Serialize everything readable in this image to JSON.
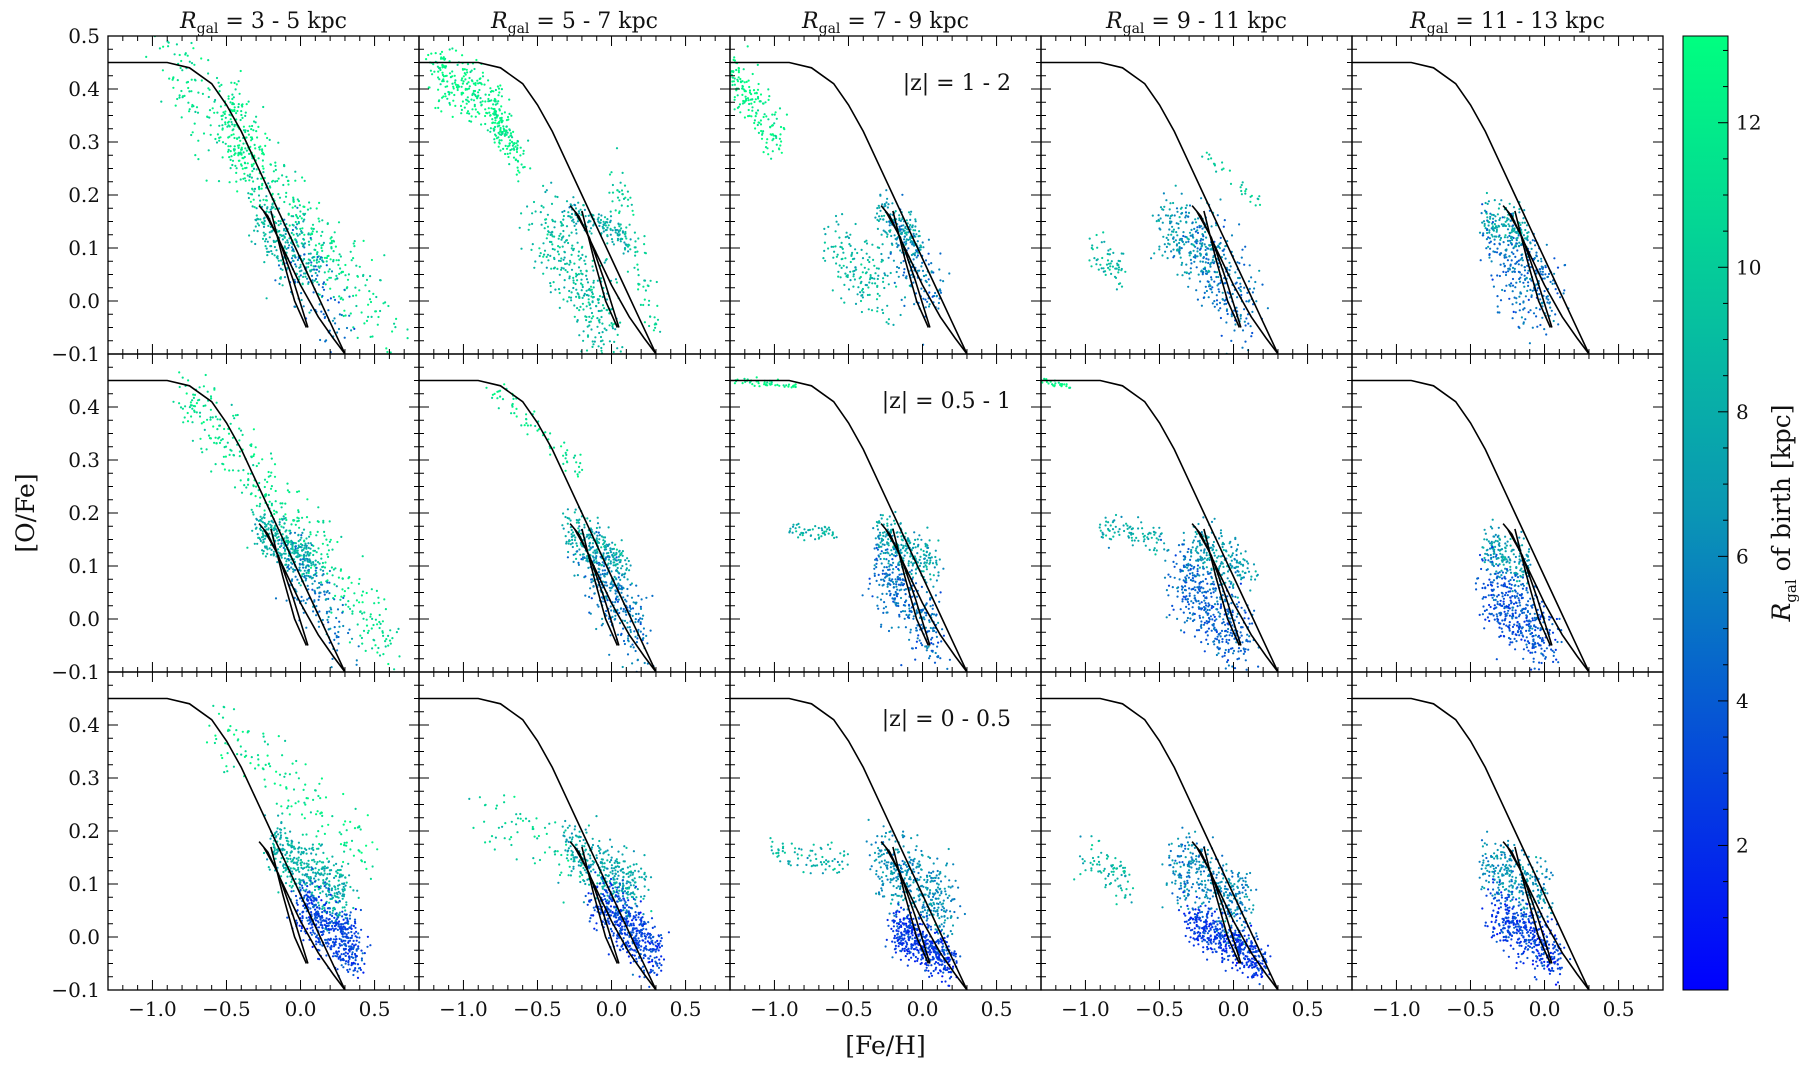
{
  "chart_data": {
    "type": "scatter",
    "xlabel": "[Fe/H]",
    "ylabel": "[O/Fe]",
    "xlim": [
      -1.3,
      0.8
    ],
    "ylim": [
      -0.1,
      0.5
    ],
    "x_ticks": [
      -1.0,
      -0.5,
      0.0,
      0.5
    ],
    "x_tick_labels": [
      "−1.0",
      "−0.5",
      "0.0",
      "0.5"
    ],
    "y_ticks": [
      -0.1,
      0.0,
      0.1,
      0.2,
      0.3,
      0.4,
      0.5
    ],
    "y_tick_labels_top": [
      "−0.1",
      "0.0",
      "0.1",
      "0.2",
      "0.3",
      "0.4",
      "0.5"
    ],
    "y_tick_labels": [
      "−0.1",
      "0.0",
      "0.1",
      "0.2",
      "0.3",
      "0.4"
    ],
    "columns": [
      "3 - 5 kpc",
      "5 - 7 kpc",
      "7 - 9 kpc",
      "9 - 11 kpc",
      "11 - 13 kpc"
    ],
    "column_prefix": "R",
    "column_prefix_sub": "gal",
    "rows": [
      "|z| = 1 - 2",
      "|z| = 0.5 - 1",
      "|z| = 0 - 0.5"
    ],
    "colorbar": {
      "label": "of birth [kpc]",
      "label_prefix": "R",
      "label_sub": "gal",
      "range": [
        0,
        13.2
      ],
      "ticks": [
        2,
        4,
        6,
        8,
        10,
        12
      ],
      "tick_labels": [
        "2",
        "4",
        "6",
        "8",
        "10",
        "12"
      ],
      "color_low": "#0000ff",
      "color_high": "#00ff80"
    },
    "reference_curves": {
      "high_alpha_track": {
        "x": [
          -1.3,
          -0.9,
          -0.75,
          -0.6,
          -0.5,
          -0.4,
          -0.3,
          -0.2,
          -0.1,
          0.0,
          0.1,
          0.2,
          0.3
        ],
        "y": [
          0.45,
          0.45,
          0.44,
          0.41,
          0.37,
          0.32,
          0.26,
          0.2,
          0.14,
          0.08,
          0.02,
          -0.04,
          -0.1
        ]
      },
      "low_alpha_loop": {
        "x": [
          0.05,
          -0.05,
          -0.15,
          -0.25,
          -0.28,
          -0.22,
          -0.12,
          0.0,
          0.12,
          0.22,
          0.3
        ],
        "y": [
          -0.05,
          0.04,
          0.12,
          0.17,
          0.18,
          0.16,
          0.1,
          0.03,
          -0.03,
          -0.07,
          -0.1
        ]
      },
      "low_alpha_inner": {
        "x": [
          -0.2,
          -0.12,
          -0.04,
          0.04
        ],
        "y": [
          0.17,
          0.08,
          0.0,
          -0.05
        ]
      }
    },
    "populations": [
      {
        "panel": [
          0,
          0
        ],
        "groups": [
          {
            "x0": -0.9,
            "y0": 0.45,
            "x1": 0.6,
            "y1": -0.05,
            "spread": 0.06,
            "r": 11.5,
            "n": 420
          },
          {
            "x0": -0.5,
            "y0": 0.38,
            "x1": -0.3,
            "y1": 0.25,
            "spread": 0.05,
            "r": 12.3,
            "n": 160
          },
          {
            "x0": -0.3,
            "y0": 0.17,
            "x1": 0.1,
            "y1": 0.05,
            "spread": 0.05,
            "r": 8.5,
            "n": 260
          },
          {
            "x0": -0.1,
            "y0": 0.1,
            "x1": 0.3,
            "y1": -0.05,
            "spread": 0.05,
            "r": 5.0,
            "n": 100
          }
        ]
      },
      {
        "panel": [
          0,
          1
        ],
        "groups": [
          {
            "x0": -1.2,
            "y0": 0.44,
            "x1": -0.7,
            "y1": 0.35,
            "spread": 0.04,
            "r": 12.5,
            "n": 260
          },
          {
            "x0": -0.8,
            "y0": 0.36,
            "x1": -0.6,
            "y1": 0.25,
            "spread": 0.03,
            "r": 12.2,
            "n": 120
          },
          {
            "x0": -0.5,
            "y0": 0.15,
            "x1": 0.0,
            "y1": -0.05,
            "spread": 0.06,
            "r": 9.2,
            "n": 330
          },
          {
            "x0": -0.3,
            "y0": 0.17,
            "x1": 0.1,
            "y1": 0.12,
            "spread": 0.02,
            "r": 8.0,
            "n": 140
          },
          {
            "x0": 0.0,
            "y0": 0.25,
            "x1": 0.3,
            "y1": -0.05,
            "spread": 0.03,
            "r": 10.5,
            "n": 90
          }
        ]
      },
      {
        "panel": [
          0,
          2
        ],
        "groups": [
          {
            "x0": -1.3,
            "y0": 0.44,
            "x1": -0.95,
            "y1": 0.3,
            "spread": 0.04,
            "r": 12.5,
            "n": 170
          },
          {
            "x0": -0.6,
            "y0": 0.1,
            "x1": -0.2,
            "y1": 0.0,
            "spread": 0.05,
            "r": 8.8,
            "n": 160
          },
          {
            "x0": -0.3,
            "y0": 0.17,
            "x1": 0.0,
            "y1": 0.1,
            "spread": 0.03,
            "r": 7.5,
            "n": 160
          },
          {
            "x0": -0.2,
            "y0": 0.12,
            "x1": 0.1,
            "y1": 0.0,
            "spread": 0.05,
            "r": 5.5,
            "n": 150
          }
        ]
      },
      {
        "panel": [
          0,
          3
        ],
        "groups": [
          {
            "x0": -0.95,
            "y0": 0.1,
            "x1": -0.75,
            "y1": 0.05,
            "spread": 0.03,
            "r": 8.8,
            "n": 60
          },
          {
            "x0": -0.5,
            "y0": 0.15,
            "x1": -0.1,
            "y1": 0.08,
            "spread": 0.05,
            "r": 7.2,
            "n": 180
          },
          {
            "x0": -0.3,
            "y0": 0.12,
            "x1": 0.1,
            "y1": -0.02,
            "spread": 0.06,
            "r": 5.2,
            "n": 260
          },
          {
            "x0": -0.2,
            "y0": 0.28,
            "x1": 0.2,
            "y1": 0.18,
            "spread": 0.01,
            "r": 10.0,
            "n": 30
          }
        ]
      },
      {
        "panel": [
          0,
          4
        ],
        "groups": [
          {
            "x0": -0.4,
            "y0": 0.16,
            "x1": -0.1,
            "y1": 0.12,
            "spread": 0.03,
            "r": 7.8,
            "n": 150
          },
          {
            "x0": -0.35,
            "y0": 0.1,
            "x1": 0.05,
            "y1": 0.0,
            "spread": 0.06,
            "r": 5.0,
            "n": 300
          }
        ]
      },
      {
        "panel": [
          1,
          0
        ],
        "groups": [
          {
            "x0": -0.8,
            "y0": 0.44,
            "x1": 0.6,
            "y1": -0.05,
            "spread": 0.05,
            "r": 11.5,
            "n": 380
          },
          {
            "x0": -0.3,
            "y0": 0.17,
            "x1": 0.1,
            "y1": 0.1,
            "spread": 0.03,
            "r": 8.3,
            "n": 300
          },
          {
            "x0": -0.1,
            "y0": 0.12,
            "x1": 0.3,
            "y1": -0.02,
            "spread": 0.05,
            "r": 5.5,
            "n": 160
          }
        ]
      },
      {
        "panel": [
          1,
          1
        ],
        "groups": [
          {
            "x0": -0.8,
            "y0": 0.44,
            "x1": -0.2,
            "y1": 0.28,
            "spread": 0.02,
            "r": 11.8,
            "n": 70
          },
          {
            "x0": -0.3,
            "y0": 0.17,
            "x1": 0.1,
            "y1": 0.1,
            "spread": 0.03,
            "r": 8.0,
            "n": 260
          },
          {
            "x0": -0.2,
            "y0": 0.12,
            "x1": 0.2,
            "y1": -0.03,
            "spread": 0.05,
            "r": 5.5,
            "n": 300
          }
        ]
      },
      {
        "panel": [
          1,
          2
        ],
        "groups": [
          {
            "x0": -1.3,
            "y0": 0.45,
            "x1": -0.85,
            "y1": 0.44,
            "spread": 0.005,
            "r": 12.8,
            "n": 50
          },
          {
            "x0": -0.9,
            "y0": 0.17,
            "x1": -0.6,
            "y1": 0.16,
            "spread": 0.01,
            "r": 8.5,
            "n": 50
          },
          {
            "x0": -0.3,
            "y0": 0.16,
            "x1": 0.1,
            "y1": 0.1,
            "spread": 0.03,
            "r": 7.6,
            "n": 250
          },
          {
            "x0": -0.3,
            "y0": 0.1,
            "x1": 0.1,
            "y1": -0.04,
            "spread": 0.05,
            "r": 5.0,
            "n": 320
          }
        ]
      },
      {
        "panel": [
          1,
          3
        ],
        "groups": [
          {
            "x0": -1.3,
            "y0": 0.45,
            "x1": -1.1,
            "y1": 0.44,
            "spread": 0.004,
            "r": 12.8,
            "n": 25
          },
          {
            "x0": -0.9,
            "y0": 0.17,
            "x1": -0.45,
            "y1": 0.15,
            "spread": 0.02,
            "r": 8.0,
            "n": 90
          },
          {
            "x0": -0.3,
            "y0": 0.15,
            "x1": 0.1,
            "y1": 0.08,
            "spread": 0.04,
            "r": 7.0,
            "n": 220
          },
          {
            "x0": -0.4,
            "y0": 0.08,
            "x1": 0.1,
            "y1": -0.05,
            "spread": 0.05,
            "r": 4.5,
            "n": 420
          }
        ]
      },
      {
        "panel": [
          1,
          4
        ],
        "groups": [
          {
            "x0": -0.4,
            "y0": 0.14,
            "x1": -0.1,
            "y1": 0.1,
            "spread": 0.03,
            "r": 7.0,
            "n": 180
          },
          {
            "x0": -0.4,
            "y0": 0.06,
            "x1": 0.05,
            "y1": -0.05,
            "spread": 0.05,
            "r": 3.8,
            "n": 420
          }
        ]
      },
      {
        "panel": [
          2,
          0
        ],
        "groups": [
          {
            "x0": -0.6,
            "y0": 0.4,
            "x1": 0.5,
            "y1": 0.15,
            "spread": 0.05,
            "r": 11.8,
            "n": 160
          },
          {
            "x0": -0.2,
            "y0": 0.17,
            "x1": 0.3,
            "y1": 0.08,
            "spread": 0.04,
            "r": 8.2,
            "n": 400
          },
          {
            "x0": 0.0,
            "y0": 0.06,
            "x1": 0.4,
            "y1": -0.03,
            "spread": 0.04,
            "r": 3.0,
            "n": 500
          }
        ]
      },
      {
        "panel": [
          2,
          1
        ],
        "groups": [
          {
            "x0": -0.9,
            "y0": 0.25,
            "x1": -0.2,
            "y1": 0.12,
            "spread": 0.04,
            "r": 10.5,
            "n": 70
          },
          {
            "x0": -0.3,
            "y0": 0.17,
            "x1": 0.2,
            "y1": 0.08,
            "spread": 0.04,
            "r": 7.8,
            "n": 340
          },
          {
            "x0": -0.1,
            "y0": 0.07,
            "x1": 0.3,
            "y1": -0.03,
            "spread": 0.04,
            "r": 3.0,
            "n": 500
          }
        ]
      },
      {
        "panel": [
          2,
          2
        ],
        "groups": [
          {
            "x0": -1.0,
            "y0": 0.16,
            "x1": -0.5,
            "y1": 0.14,
            "spread": 0.02,
            "r": 8.5,
            "n": 80
          },
          {
            "x0": -0.3,
            "y0": 0.15,
            "x1": 0.2,
            "y1": 0.05,
            "spread": 0.05,
            "r": 6.5,
            "n": 420
          },
          {
            "x0": -0.2,
            "y0": 0.02,
            "x1": 0.2,
            "y1": -0.05,
            "spread": 0.03,
            "r": 2.5,
            "n": 450
          }
        ]
      },
      {
        "panel": [
          2,
          3
        ],
        "groups": [
          {
            "x0": -1.0,
            "y0": 0.15,
            "x1": -0.7,
            "y1": 0.1,
            "spread": 0.03,
            "r": 8.5,
            "n": 80
          },
          {
            "x0": -0.4,
            "y0": 0.14,
            "x1": 0.1,
            "y1": 0.05,
            "spread": 0.05,
            "r": 6.0,
            "n": 400
          },
          {
            "x0": -0.3,
            "y0": 0.03,
            "x1": 0.2,
            "y1": -0.05,
            "spread": 0.03,
            "r": 2.5,
            "n": 460
          }
        ]
      },
      {
        "panel": [
          2,
          4
        ],
        "groups": [
          {
            "x0": -0.4,
            "y0": 0.14,
            "x1": 0.0,
            "y1": 0.08,
            "spread": 0.04,
            "r": 6.5,
            "n": 280
          },
          {
            "x0": -0.35,
            "y0": 0.05,
            "x1": 0.1,
            "y1": -0.04,
            "spread": 0.04,
            "r": 2.8,
            "n": 420
          }
        ]
      }
    ]
  }
}
